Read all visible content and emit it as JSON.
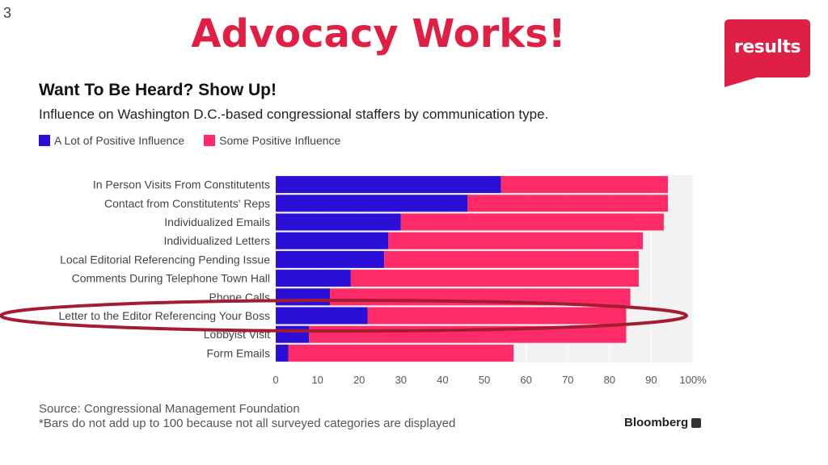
{
  "slide": {
    "number": "3",
    "title": "Advocacy Works!",
    "logo_text": "results",
    "brand_color": "#e01f45"
  },
  "chart_data": {
    "type": "bar",
    "orientation": "horizontal",
    "stacked": true,
    "title": "Want To Be Heard? Show Up!",
    "subtitle": "Influence on Washington D.C.-based congressional staffers by communication type.",
    "categories": [
      "In Person Visits From Constitutents",
      "Contact from Constitutents' Reps",
      "Individualized Emails",
      "Individualized Letters",
      "Local Editorial Referencing Pending Issue",
      "Comments During Telephone Town Hall",
      "Phone Calls",
      "Letter to the Editor Referencing Your Boss",
      "Lobbyist Visit",
      "Form Emails"
    ],
    "series": [
      {
        "name": "A Lot of Positive Influence",
        "color": "#2b0fd6",
        "values": [
          54,
          46,
          30,
          27,
          26,
          18,
          13,
          22,
          8,
          3
        ]
      },
      {
        "name": "Some Positive Influence",
        "color": "#ff2a68",
        "values": [
          40,
          48,
          63,
          61,
          61,
          69,
          72,
          62,
          76,
          54
        ]
      }
    ],
    "xlim": [
      0,
      100
    ],
    "xticks": [
      "0",
      "10",
      "20",
      "30",
      "40",
      "50",
      "60",
      "70",
      "80",
      "90",
      "100%"
    ],
    "highlighted_category": "Letter to the Editor Referencing Your Boss",
    "highlight_color": "#a51c30",
    "grid": true,
    "legend_position": "top-left",
    "source": "Source: Congressional Management Foundation",
    "footnote": "*Bars do not add up to 100 because not all surveyed categories are displayed",
    "publisher": "Bloomberg"
  }
}
